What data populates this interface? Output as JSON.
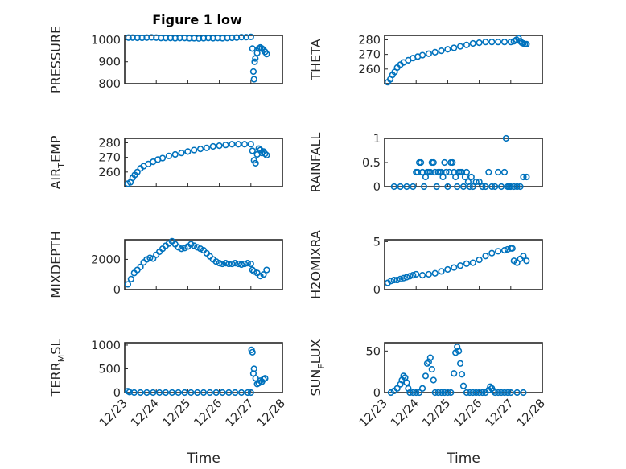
{
  "figure": {
    "title": "Figure 1 low"
  },
  "chart_data": [
    {
      "type": "scatter",
      "ylabel": "PRESSURE",
      "xlabel": "",
      "xlim": [
        "12/23",
        "12/28"
      ],
      "xticks": [
        "12/23",
        "12/24",
        "12/25",
        "12/26",
        "12/27",
        "12/28"
      ],
      "ylim": [
        800,
        1020
      ],
      "yticks": [
        800,
        900,
        1000
      ],
      "grid": true,
      "marker": "circle",
      "color": "#0072bd",
      "series": [
        {
          "x": [
            0.12,
            0.25,
            0.4,
            0.55,
            0.7,
            0.85,
            1.0,
            1.15,
            1.3,
            1.45,
            1.6,
            1.75,
            1.9,
            2.05,
            2.2,
            2.35,
            2.5,
            2.65,
            2.8,
            2.95,
            3.1,
            3.25,
            3.4,
            3.55,
            3.7,
            3.85,
            4.0,
            4.05,
            4.08,
            4.1,
            4.12,
            4.14,
            4.2,
            4.25,
            4.3,
            4.35,
            4.4,
            4.45,
            4.5
          ],
          "y": [
            1010,
            1010,
            1009,
            1009,
            1010,
            1011,
            1010,
            1008,
            1008,
            1008,
            1007,
            1008,
            1008,
            1007,
            1007,
            1006,
            1007,
            1008,
            1007,
            1008,
            1007,
            1008,
            1009,
            1010,
            1012,
            1012,
            1013,
            960,
            855,
            820,
            900,
            915,
            940,
            960,
            965,
            960,
            955,
            945,
            935
          ]
        }
      ]
    },
    {
      "type": "scatter",
      "ylabel": "THETA",
      "xlabel": "",
      "xlim": [
        "12/23",
        "12/28"
      ],
      "xticks": [
        "12/23",
        "12/24",
        "12/25",
        "12/26",
        "12/27",
        "12/28"
      ],
      "ylim": [
        250,
        283
      ],
      "yticks": [
        260,
        270,
        280
      ],
      "grid": true,
      "marker": "circle",
      "color": "#0072bd",
      "series": [
        {
          "x": [
            0.1,
            0.18,
            0.25,
            0.32,
            0.4,
            0.5,
            0.6,
            0.75,
            0.9,
            1.05,
            1.2,
            1.4,
            1.6,
            1.8,
            2.0,
            2.2,
            2.4,
            2.6,
            2.8,
            3.0,
            3.2,
            3.4,
            3.6,
            3.8,
            4.0,
            4.1,
            4.18,
            4.25,
            4.3,
            4.35,
            4.4,
            4.45,
            4.5
          ],
          "y": [
            251,
            253,
            256,
            258,
            261,
            263,
            264.5,
            266,
            267.5,
            268.5,
            269.5,
            270.5,
            271.5,
            272.5,
            273.5,
            274.5,
            275.5,
            276.5,
            277.5,
            278,
            278.5,
            278.5,
            278.5,
            278.5,
            278.5,
            279,
            280,
            281,
            279,
            278,
            277.5,
            277,
            277
          ]
        }
      ]
    },
    {
      "type": "scatter",
      "ylabel": "AIR_TEMP",
      "xlabel": "",
      "xlim": [
        "12/23",
        "12/28"
      ],
      "xticks": [
        "12/23",
        "12/24",
        "12/25",
        "12/26",
        "12/27",
        "12/28"
      ],
      "ylim": [
        250,
        283
      ],
      "yticks": [
        260,
        270,
        280
      ],
      "grid": true,
      "marker": "circle",
      "color": "#0072bd",
      "series": [
        {
          "x": [
            0.1,
            0.18,
            0.25,
            0.32,
            0.4,
            0.5,
            0.6,
            0.75,
            0.9,
            1.05,
            1.2,
            1.4,
            1.6,
            1.8,
            2.0,
            2.2,
            2.4,
            2.6,
            2.8,
            3.0,
            3.2,
            3.4,
            3.6,
            3.8,
            4.0,
            4.05,
            4.1,
            4.15,
            4.2,
            4.25,
            4.3,
            4.35,
            4.4,
            4.45,
            4.5
          ],
          "y": [
            252,
            253,
            256,
            258,
            260,
            262.5,
            264,
            265.5,
            267,
            268.5,
            269.5,
            271,
            272,
            273,
            274,
            275,
            275.8,
            276.5,
            277.5,
            278,
            278.5,
            279,
            279,
            279,
            279,
            274.5,
            268,
            266,
            272,
            276,
            275,
            273,
            274,
            272.5,
            271.5
          ]
        }
      ]
    },
    {
      "type": "scatter",
      "ylabel": "RAINFALL",
      "xlabel": "",
      "xlim": [
        "12/23",
        "12/28"
      ],
      "xticks": [
        "12/23",
        "12/24",
        "12/25",
        "12/26",
        "12/27",
        "12/28"
      ],
      "ylim": [
        0,
        1
      ],
      "yticks": [
        0,
        0.5,
        1
      ],
      "grid": true,
      "marker": "circle",
      "color": "#0072bd",
      "series": [
        {
          "x": [
            0.3,
            0.5,
            0.7,
            0.9,
            1.0,
            1.05,
            1.1,
            1.15,
            1.2,
            1.25,
            1.3,
            1.35,
            1.4,
            1.45,
            1.5,
            1.55,
            1.6,
            1.65,
            1.7,
            1.75,
            1.8,
            1.85,
            1.9,
            1.95,
            2.0,
            2.05,
            2.1,
            2.15,
            2.2,
            2.25,
            2.3,
            2.35,
            2.4,
            2.45,
            2.5,
            2.55,
            2.6,
            2.65,
            2.7,
            2.75,
            2.8,
            2.9,
            3.0,
            3.1,
            3.2,
            3.3,
            3.4,
            3.5,
            3.6,
            3.7,
            3.8,
            3.85,
            3.9,
            3.95,
            4.0,
            4.1,
            4.2,
            4.3,
            4.4,
            4.5
          ],
          "y": [
            0,
            0,
            0,
            0,
            0.3,
            0.3,
            0.5,
            0.5,
            0.3,
            0,
            0.2,
            0.3,
            0.3,
            0.3,
            0.5,
            0.5,
            0.3,
            0,
            0.3,
            0.3,
            0.3,
            0.2,
            0.5,
            0.3,
            0,
            0.3,
            0.5,
            0.5,
            0.3,
            0.2,
            0,
            0.3,
            0.3,
            0.3,
            0,
            0.2,
            0.3,
            0.1,
            0,
            0.2,
            0,
            0.1,
            0.1,
            0,
            0,
            0.3,
            0,
            0,
            0.3,
            0,
            0.3,
            1,
            0,
            0,
            0,
            0,
            0,
            0,
            0.2,
            0.2
          ]
        }
      ]
    },
    {
      "type": "scatter",
      "ylabel": "MIXDEPTH",
      "xlabel": "",
      "xlim": [
        "12/23",
        "12/28"
      ],
      "xticks": [
        "12/23",
        "12/24",
        "12/25",
        "12/26",
        "12/27",
        "12/28"
      ],
      "ylim": [
        0,
        3300
      ],
      "yticks": [
        0,
        2000
      ],
      "grid": true,
      "marker": "circle",
      "color": "#0072bd",
      "series": [
        {
          "x": [
            0.1,
            0.2,
            0.3,
            0.4,
            0.5,
            0.6,
            0.7,
            0.8,
            0.9,
            1.0,
            1.1,
            1.2,
            1.3,
            1.4,
            1.5,
            1.6,
            1.7,
            1.8,
            1.9,
            2.0,
            2.1,
            2.2,
            2.3,
            2.4,
            2.5,
            2.6,
            2.7,
            2.8,
            2.9,
            3.0,
            3.1,
            3.2,
            3.3,
            3.4,
            3.5,
            3.6,
            3.7,
            3.8,
            3.9,
            4.0,
            4.05,
            4.1,
            4.2,
            4.3,
            4.4,
            4.5
          ],
          "y": [
            350,
            700,
            1100,
            1300,
            1500,
            1800,
            2000,
            2100,
            2050,
            2300,
            2500,
            2700,
            2900,
            3050,
            3200,
            3000,
            2800,
            2700,
            2750,
            2850,
            3000,
            2900,
            2800,
            2700,
            2600,
            2400,
            2200,
            2000,
            1850,
            1750,
            1700,
            1750,
            1700,
            1700,
            1750,
            1700,
            1650,
            1700,
            1750,
            1700,
            1300,
            1200,
            1100,
            900,
            1000,
            1300
          ]
        }
      ]
    },
    {
      "type": "scatter",
      "ylabel": "H2OMIXRA",
      "xlabel": "",
      "xlim": [
        "12/23",
        "12/28"
      ],
      "xticks": [
        "12/23",
        "12/24",
        "12/25",
        "12/26",
        "12/27",
        "12/28"
      ],
      "ylim": [
        0,
        5.2
      ],
      "yticks": [
        0,
        5
      ],
      "grid": true,
      "marker": "circle",
      "color": "#0072bd",
      "series": [
        {
          "x": [
            0.1,
            0.2,
            0.3,
            0.4,
            0.5,
            0.6,
            0.7,
            0.8,
            0.9,
            1.0,
            1.2,
            1.4,
            1.6,
            1.8,
            2.0,
            2.2,
            2.4,
            2.6,
            2.8,
            3.0,
            3.2,
            3.4,
            3.6,
            3.8,
            3.9,
            4.0,
            4.05,
            4.1,
            4.2,
            4.3,
            4.4,
            4.5
          ],
          "y": [
            0.7,
            0.9,
            1.0,
            1.0,
            1.1,
            1.2,
            1.3,
            1.4,
            1.5,
            1.6,
            1.5,
            1.6,
            1.7,
            1.9,
            2.1,
            2.3,
            2.5,
            2.7,
            2.8,
            3.1,
            3.5,
            3.8,
            4.0,
            4.1,
            4.2,
            4.3,
            4.3,
            3.0,
            2.8,
            3.2,
            3.5,
            3.0
          ]
        }
      ]
    },
    {
      "type": "scatter",
      "ylabel": "TERR_MSL",
      "xlabel": "Time",
      "xlim": [
        "12/23",
        "12/28"
      ],
      "xticks": [
        "12/23",
        "12/24",
        "12/25",
        "12/26",
        "12/27",
        "12/28"
      ],
      "ylim": [
        0,
        1050
      ],
      "yticks": [
        0,
        500,
        1000
      ],
      "grid": true,
      "marker": "circle",
      "color": "#0072bd",
      "series": [
        {
          "x": [
            0.1,
            0.15,
            0.3,
            0.5,
            0.7,
            0.9,
            1.1,
            1.3,
            1.5,
            1.7,
            1.9,
            2.1,
            2.3,
            2.5,
            2.7,
            2.9,
            3.1,
            3.3,
            3.5,
            3.7,
            3.9,
            4.0,
            4.02,
            4.05,
            4.08,
            4.1,
            4.15,
            4.2,
            4.25,
            4.3,
            4.35,
            4.4,
            4.45
          ],
          "y": [
            30,
            10,
            0,
            0,
            0,
            0,
            0,
            0,
            0,
            0,
            0,
            0,
            0,
            0,
            0,
            0,
            0,
            0,
            0,
            0,
            0,
            0,
            900,
            850,
            400,
            500,
            300,
            180,
            200,
            250,
            230,
            280,
            300
          ]
        }
      ]
    },
    {
      "type": "scatter",
      "ylabel": "SUN_FLUX",
      "xlabel": "Time",
      "xlim": [
        "12/23",
        "12/28"
      ],
      "xticks": [
        "12/23",
        "12/24",
        "12/25",
        "12/26",
        "12/27",
        "12/28"
      ],
      "ylim": [
        0,
        60
      ],
      "yticks": [
        0,
        50
      ],
      "grid": true,
      "marker": "circle",
      "color": "#0072bd",
      "series": [
        {
          "x": [
            0.2,
            0.3,
            0.4,
            0.5,
            0.55,
            0.6,
            0.65,
            0.7,
            0.75,
            0.8,
            0.9,
            1.0,
            1.1,
            1.2,
            1.3,
            1.35,
            1.4,
            1.45,
            1.5,
            1.55,
            1.6,
            1.7,
            1.8,
            1.9,
            2.0,
            2.1,
            2.2,
            2.25,
            2.3,
            2.35,
            2.4,
            2.45,
            2.5,
            2.6,
            2.7,
            2.8,
            2.9,
            3.0,
            3.1,
            3.2,
            3.3,
            3.35,
            3.4,
            3.45,
            3.5,
            3.6,
            3.7,
            3.8,
            3.9,
            4.0,
            4.2,
            4.4
          ],
          "y": [
            0,
            2,
            5,
            10,
            15,
            20,
            18,
            12,
            5,
            0,
            0,
            0,
            0,
            5,
            20,
            35,
            37,
            42,
            28,
            15,
            0,
            0,
            0,
            0,
            0,
            0,
            23,
            48,
            55,
            50,
            35,
            22,
            8,
            0,
            0,
            0,
            0,
            0,
            0,
            0,
            3,
            7,
            5,
            2,
            0,
            0,
            0,
            0,
            0,
            0,
            0,
            0
          ]
        }
      ]
    }
  ]
}
